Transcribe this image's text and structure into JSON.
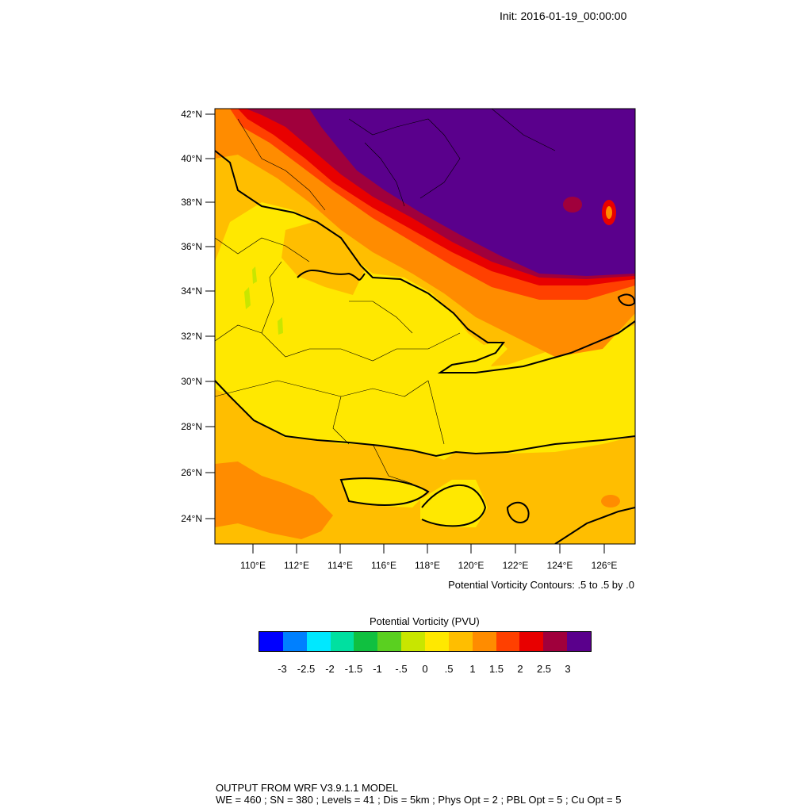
{
  "header": {
    "init_text": "Init: 2016-01-19_00:00:00"
  },
  "map": {
    "lat_labels": [
      "42°N",
      "40°N",
      "38°N",
      "36°N",
      "34°N",
      "32°N",
      "30°N",
      "28°N",
      "26°N",
      "24°N"
    ],
    "lon_labels": [
      "110°E",
      "112°E",
      "114°E",
      "116°E",
      "118°E",
      "120°E",
      "122°E",
      "124°E",
      "126°E"
    ],
    "colors": {
      "purple": "#5a008c",
      "maroon": "#a0003c",
      "red": "#e80000",
      "red_orange": "#ff4000",
      "orange": "#ff8c00",
      "amber": "#ffbe00",
      "yellow": "#ffe800",
      "yellow_green": "#c8e600",
      "green": "#5ad020"
    }
  },
  "contour_note": "Potential Vorticity Contours: .5 to .5 by .0",
  "colorbar": {
    "title": "Potential Vorticity  (PVU)",
    "colors": [
      "#0000ff",
      "#0080ff",
      "#00e8ff",
      "#00e0a0",
      "#10c040",
      "#5ad020",
      "#c8e600",
      "#ffe800",
      "#ffbe00",
      "#ff8c00",
      "#ff4000",
      "#e80000",
      "#a0003c",
      "#5a008c"
    ],
    "labels": [
      "-3",
      "-2.5",
      "-2",
      "-1.5",
      "-1",
      "-.5",
      "0",
      ".5",
      "1",
      "1.5",
      "2",
      "2.5",
      "3"
    ]
  },
  "footer": {
    "line1": "OUTPUT FROM WRF V3.9.1.1 MODEL",
    "line2": "WE = 460 ; SN = 380 ; Levels = 41 ; Dis = 5km ; Phys Opt = 2 ; PBL Opt = 5 ; Cu Opt = 5"
  }
}
